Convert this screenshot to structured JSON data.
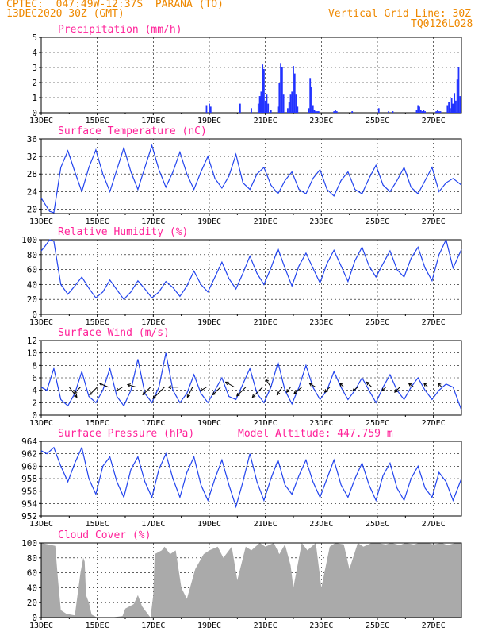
{
  "header": {
    "line1_left": "CPTEC:  047:49W-12:37S  PARANA (TO)",
    "line2_left": "13DEC2020 30Z (GMT)",
    "line1_right": "Vertical Grid Line: 30Z",
    "line2_right": "TQ0126L028"
  },
  "colors": {
    "header": "#ee8800",
    "panel_title": "#ff2299",
    "series_line": "#2244ee",
    "precip_bar": "#2233ff",
    "cloud_fill": "#aaaaaa",
    "wind_arrow": "#000000",
    "axis": "#000000",
    "grid": "#000000"
  },
  "x_ticks": [
    "13DEC",
    "15DEC",
    "17DEC",
    "19DEC",
    "21DEC",
    "23DEC",
    "25DEC",
    "27DEC"
  ],
  "x_tick_days": [
    0,
    2,
    4,
    6,
    8,
    10,
    12,
    14
  ],
  "chart_data": [
    {
      "id": "precip",
      "type": "bar",
      "title": "Precipitation (mm/h)",
      "ylabel": "Precipitation (mm/h)",
      "ylim": [
        0,
        5
      ],
      "yticks": [
        0,
        1,
        2,
        3,
        4,
        5
      ],
      "grid": "dashed",
      "x_unit": "days since 13DEC 00Z",
      "x": [
        5.9,
        6.0,
        6.05,
        7.1,
        7.5,
        7.75,
        7.8,
        7.85,
        7.9,
        7.95,
        8.0,
        8.05,
        8.1,
        8.2,
        8.45,
        8.5,
        8.55,
        8.6,
        8.65,
        8.8,
        8.85,
        8.9,
        8.95,
        9.0,
        9.05,
        9.1,
        9.15,
        9.55,
        9.6,
        9.65,
        9.7,
        9.75,
        9.8,
        9.85,
        9.9,
        10.45,
        10.5,
        10.55,
        11.1,
        12.05,
        12.4,
        12.55,
        13.4,
        13.45,
        13.5,
        13.55,
        13.6,
        13.65,
        13.7,
        14.1,
        14.15,
        14.2,
        14.25,
        14.5,
        14.55,
        14.6,
        14.65,
        14.7,
        14.75,
        14.8,
        14.85,
        14.9,
        14.95
      ],
      "values": [
        0.5,
        0.6,
        0.4,
        0.6,
        0.3,
        0.6,
        1.1,
        1.4,
        3.2,
        2.9,
        0.8,
        1.2,
        0.6,
        0.2,
        0.4,
        2.0,
        3.3,
        3.0,
        1.2,
        0.3,
        0.7,
        1.2,
        1.4,
        3.1,
        2.6,
        1.2,
        0.4,
        0.3,
        2.3,
        1.7,
        0.5,
        0.2,
        0.1,
        0.1,
        0.1,
        0.1,
        0.2,
        0.1,
        0.1,
        0.3,
        0.1,
        0.1,
        0.2,
        0.5,
        0.4,
        0.2,
        0.1,
        0.2,
        0.1,
        0.1,
        0.2,
        0.1,
        0.1,
        0.5,
        0.7,
        0.3,
        1.0,
        0.6,
        1.3,
        0.8,
        2.2,
        3.0,
        1.1
      ]
    },
    {
      "id": "temperature",
      "type": "line",
      "title": "Surface Temperature (nC)",
      "ylabel": "Surface Temperature (nC)",
      "ylim": [
        19,
        36
      ],
      "yticks": [
        20,
        24,
        28,
        32,
        36
      ],
      "grid": "dashed",
      "x": [
        0,
        0.15,
        0.3,
        0.45,
        0.7,
        0.95,
        1.2,
        1.45,
        1.7,
        1.95,
        2.2,
        2.45,
        2.7,
        2.95,
        3.2,
        3.45,
        3.7,
        3.95,
        4.2,
        4.45,
        4.7,
        4.95,
        5.2,
        5.45,
        5.7,
        5.95,
        6.2,
        6.45,
        6.7,
        6.95,
        7.2,
        7.45,
        7.7,
        7.95,
        8.2,
        8.45,
        8.7,
        8.95,
        9.2,
        9.45,
        9.7,
        9.95,
        10.2,
        10.45,
        10.7,
        10.95,
        11.2,
        11.45,
        11.7,
        11.95,
        12.2,
        12.45,
        12.7,
        12.95,
        13.2,
        13.45,
        13.7,
        13.95,
        14.2,
        14.45,
        14.7,
        15.0
      ],
      "values": [
        22.5,
        21.0,
        19.5,
        19.2,
        29.5,
        33.3,
        28.5,
        24.0,
        29.5,
        33.5,
        28.0,
        24.0,
        29.0,
        34.0,
        28.5,
        24.5,
        29.5,
        34.5,
        29.0,
        25.0,
        28.5,
        33.0,
        28.0,
        24.5,
        28.5,
        32.0,
        27.0,
        24.8,
        27.5,
        32.5,
        26.0,
        24.5,
        28.0,
        29.5,
        25.5,
        23.5,
        26.5,
        28.5,
        24.5,
        23.5,
        27.0,
        29.0,
        24.5,
        23.0,
        26.5,
        28.5,
        24.5,
        23.5,
        27.0,
        30.0,
        25.5,
        24.0,
        26.5,
        29.5,
        25.0,
        23.5,
        26.5,
        29.5,
        24.0,
        26.0,
        27.0,
        25.5
      ]
    },
    {
      "id": "humidity",
      "type": "line",
      "title": "Relative Humidity (%)",
      "ylabel": "Relative Humidity (%)",
      "ylim": [
        0,
        100
      ],
      "yticks": [
        0,
        20,
        40,
        60,
        80,
        100
      ],
      "grid": "dashed",
      "x": [
        0,
        0.15,
        0.3,
        0.45,
        0.7,
        0.95,
        1.2,
        1.45,
        1.7,
        1.95,
        2.2,
        2.45,
        2.7,
        2.95,
        3.2,
        3.45,
        3.7,
        3.95,
        4.2,
        4.45,
        4.7,
        4.95,
        5.2,
        5.45,
        5.7,
        5.95,
        6.2,
        6.45,
        6.7,
        6.95,
        7.2,
        7.45,
        7.7,
        7.95,
        8.2,
        8.45,
        8.7,
        8.95,
        9.2,
        9.45,
        9.7,
        9.95,
        10.2,
        10.45,
        10.7,
        10.95,
        11.2,
        11.45,
        11.7,
        11.95,
        12.2,
        12.45,
        12.7,
        12.95,
        13.2,
        13.45,
        13.7,
        13.95,
        14.2,
        14.45,
        14.7,
        15.0
      ],
      "values": [
        85,
        92,
        100,
        98,
        40,
        27,
        38,
        50,
        35,
        22,
        30,
        46,
        33,
        20,
        30,
        45,
        34,
        22,
        30,
        44,
        36,
        24,
        38,
        58,
        40,
        30,
        50,
        70,
        48,
        34,
        55,
        78,
        55,
        40,
        62,
        88,
        62,
        38,
        65,
        82,
        62,
        42,
        68,
        86,
        65,
        44,
        72,
        90,
        65,
        50,
        68,
        85,
        60,
        50,
        75,
        90,
        62,
        45,
        80,
        100,
        62,
        87
      ]
    },
    {
      "id": "wind",
      "type": "line",
      "title": "Surface Wind (m/s)",
      "ylabel": "Surface Wind (m/s)",
      "ylim": [
        0,
        12
      ],
      "yticks": [
        0,
        2,
        4,
        6,
        8,
        10,
        12
      ],
      "grid": "dashed",
      "x": [
        0,
        0.2,
        0.45,
        0.7,
        0.95,
        1.2,
        1.45,
        1.7,
        1.95,
        2.2,
        2.45,
        2.7,
        2.95,
        3.2,
        3.45,
        3.7,
        3.95,
        4.2,
        4.45,
        4.7,
        4.95,
        5.2,
        5.45,
        5.7,
        5.95,
        6.2,
        6.45,
        6.7,
        6.95,
        7.2,
        7.45,
        7.7,
        7.95,
        8.2,
        8.45,
        8.7,
        8.95,
        9.2,
        9.45,
        9.7,
        9.95,
        10.2,
        10.45,
        10.7,
        10.95,
        11.2,
        11.45,
        11.7,
        11.95,
        12.2,
        12.45,
        12.7,
        12.95,
        13.2,
        13.45,
        13.7,
        13.95,
        14.2,
        14.45,
        14.7,
        15.0
      ],
      "values": [
        4.5,
        4.0,
        7.5,
        2.5,
        1.5,
        3.5,
        7.0,
        3.0,
        2.0,
        4.0,
        7.5,
        3.0,
        1.5,
        4.0,
        9.0,
        3.5,
        2.0,
        4.5,
        10.0,
        4.0,
        2.0,
        3.5,
        6.5,
        3.5,
        2.0,
        4.0,
        6.0,
        3.0,
        2.5,
        5.0,
        7.5,
        3.5,
        2.0,
        4.5,
        8.5,
        4.0,
        1.8,
        4.5,
        8.0,
        4.5,
        2.5,
        4.0,
        7.0,
        4.5,
        2.5,
        4.0,
        6.0,
        4.0,
        2.0,
        4.5,
        6.5,
        4.0,
        2.5,
        4.5,
        6.0,
        4.0,
        2.5,
        4.0,
        5.0,
        4.5,
        0.8
      ],
      "arrows": [
        {
          "day": 1.0,
          "u": 0.6,
          "v": -0.8
        },
        {
          "day": 1.4,
          "u": -0.5,
          "v": -0.5
        },
        {
          "day": 2.0,
          "u": -0.6,
          "v": -0.6
        },
        {
          "day": 2.4,
          "u": -0.7,
          "v": 0.3
        },
        {
          "day": 2.9,
          "u": -0.5,
          "v": -0.3
        },
        {
          "day": 3.4,
          "u": -0.7,
          "v": 0.2
        },
        {
          "day": 3.9,
          "u": -0.6,
          "v": -0.6
        },
        {
          "day": 4.4,
          "u": -0.9,
          "v": -0.9
        },
        {
          "day": 4.9,
          "u": -0.8,
          "v": 0.0
        },
        {
          "day": 5.4,
          "u": -0.4,
          "v": -0.8
        },
        {
          "day": 5.9,
          "u": -0.5,
          "v": -0.3
        },
        {
          "day": 6.4,
          "u": -0.6,
          "v": -0.6
        },
        {
          "day": 6.9,
          "u": -0.7,
          "v": 0.4
        },
        {
          "day": 7.3,
          "u": -0.7,
          "v": -0.7
        },
        {
          "day": 7.9,
          "u": -0.8,
          "v": -0.8
        },
        {
          "day": 8.2,
          "u": -0.4,
          "v": 0.6
        },
        {
          "day": 8.6,
          "u": -0.4,
          "v": -0.6
        },
        {
          "day": 8.9,
          "u": -0.3,
          "v": -0.4
        },
        {
          "day": 9.3,
          "u": -0.6,
          "v": -0.5
        },
        {
          "day": 9.8,
          "u": -0.5,
          "v": 0.3
        },
        {
          "day": 10.3,
          "u": -0.4,
          "v": -0.4
        },
        {
          "day": 10.8,
          "u": -0.3,
          "v": 0.3
        },
        {
          "day": 11.3,
          "u": -0.4,
          "v": -0.3
        },
        {
          "day": 11.8,
          "u": -0.4,
          "v": 0.4
        },
        {
          "day": 12.3,
          "u": -0.3,
          "v": -0.3
        },
        {
          "day": 12.8,
          "u": -0.4,
          "v": -0.4
        },
        {
          "day": 13.3,
          "u": -0.4,
          "v": 0.3
        },
        {
          "day": 13.8,
          "u": -0.3,
          "v": 0.3
        },
        {
          "day": 14.3,
          "u": -0.3,
          "v": 0.3
        }
      ]
    },
    {
      "id": "pressure",
      "type": "line",
      "title": "Surface Pressure (hPa)",
      "subtitle": "Model Altitude: 447.759 m",
      "ylabel": "Surface Pressure (hPa)",
      "ylim": [
        952,
        964
      ],
      "yticks": [
        952,
        954,
        956,
        958,
        960,
        962,
        964
      ],
      "grid": "dashed",
      "x": [
        0,
        0.2,
        0.45,
        0.7,
        0.95,
        1.2,
        1.45,
        1.7,
        1.95,
        2.2,
        2.45,
        2.7,
        2.95,
        3.2,
        3.45,
        3.7,
        3.95,
        4.2,
        4.45,
        4.7,
        4.95,
        5.2,
        5.45,
        5.7,
        5.95,
        6.2,
        6.45,
        6.7,
        6.95,
        7.2,
        7.45,
        7.7,
        7.95,
        8.2,
        8.45,
        8.7,
        8.95,
        9.2,
        9.45,
        9.7,
        9.95,
        10.2,
        10.45,
        10.7,
        10.95,
        11.2,
        11.45,
        11.7,
        11.95,
        12.2,
        12.45,
        12.7,
        12.95,
        13.2,
        13.45,
        13.7,
        13.95,
        14.2,
        14.45,
        14.7,
        15.0
      ],
      "values": [
        962.5,
        962.0,
        963.0,
        960.0,
        957.5,
        960.5,
        963.0,
        958.0,
        955.5,
        960.0,
        961.5,
        957.5,
        955.0,
        959.5,
        961.5,
        957.5,
        955.0,
        959.5,
        962.0,
        958.0,
        955.0,
        959.0,
        961.5,
        957.0,
        954.5,
        958.0,
        961.0,
        957.0,
        953.5,
        957.5,
        962.0,
        957.5,
        954.5,
        958.0,
        961.0,
        957.0,
        955.5,
        958.5,
        961.0,
        957.5,
        955.0,
        958.0,
        961.0,
        957.0,
        955.0,
        958.0,
        960.5,
        957.0,
        954.5,
        958.5,
        960.5,
        956.5,
        954.5,
        958.0,
        960.0,
        956.5,
        955.0,
        959.0,
        957.5,
        954.5,
        958.0
      ]
    },
    {
      "id": "cloud",
      "type": "area",
      "title": "Cloud Cover (%)",
      "ylabel": "Cloud Cover (%)",
      "ylim": [
        0,
        100
      ],
      "yticks": [
        0,
        20,
        40,
        60,
        80,
        100
      ],
      "grid": "dashed",
      "x": [
        0,
        0.5,
        0.6,
        0.7,
        0.9,
        1.2,
        1.4,
        1.5,
        1.55,
        1.6,
        1.7,
        1.8,
        2.0,
        2.5,
        2.9,
        3.0,
        3.3,
        3.45,
        3.6,
        3.9,
        4.0,
        4.05,
        4.3,
        4.4,
        4.6,
        4.8,
        5.0,
        5.2,
        5.5,
        5.8,
        6.0,
        6.3,
        6.5,
        6.8,
        7.0,
        7.3,
        7.5,
        7.8,
        8.0,
        8.3,
        8.5,
        8.7,
        8.9,
        9.0,
        9.3,
        9.5,
        9.8,
        10.0,
        10.3,
        10.5,
        10.8,
        11.0,
        11.3,
        11.5,
        11.8,
        12.0,
        12.3,
        12.5,
        12.8,
        13.0,
        13.3,
        13.5,
        13.8,
        14.0,
        14.3,
        14.5,
        14.8,
        15.0
      ],
      "values": [
        100,
        96,
        50,
        10,
        5,
        3,
        60,
        80,
        75,
        30,
        20,
        4,
        0,
        0,
        2,
        12,
        18,
        30,
        15,
        0,
        30,
        85,
        90,
        95,
        85,
        90,
        40,
        25,
        65,
        85,
        90,
        95,
        80,
        95,
        50,
        95,
        90,
        100,
        95,
        100,
        85,
        98,
        70,
        40,
        100,
        90,
        100,
        40,
        95,
        100,
        98,
        65,
        100,
        95,
        100,
        100,
        98,
        100,
        97,
        100,
        98,
        100,
        100,
        98,
        100,
        97,
        100,
        100
      ]
    }
  ]
}
